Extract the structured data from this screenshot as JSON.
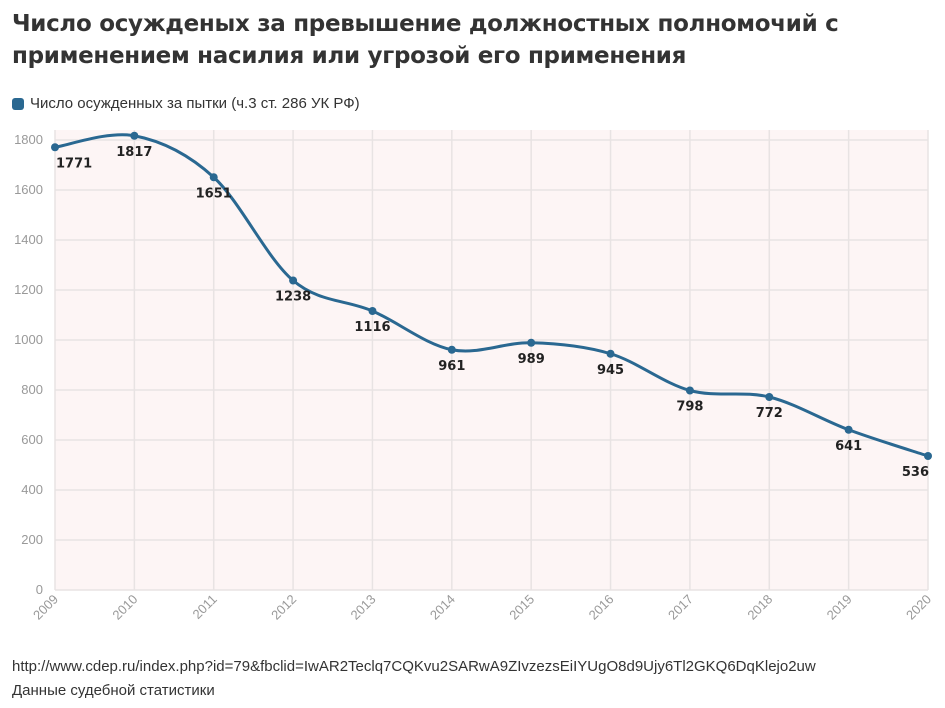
{
  "title": "Число осужденых за превышение должностных полномочий с применением насилия или угрозой его применения",
  "legend": {
    "label": "Число осужденных за пытки (ч.3 ст. 286 УК РФ)"
  },
  "colors": {
    "line": "#2a6891",
    "plot_bg": "#fdf5f5",
    "grid": "#e8e3e3"
  },
  "footer": {
    "source_url": "http://www.cdep.ru/index.php?id=79&fbclid=IwAR2Teclq7CQKvu2SARwA9ZIvzezsEiIYUgO8d9Ujy6Tl2GKQ6DqKlejo2uw",
    "source_note": "Данные судебной статистики"
  },
  "chart_data": {
    "type": "line",
    "x": [
      "2009",
      "2010",
      "2011",
      "2012",
      "2013",
      "2014",
      "2015",
      "2016",
      "2017",
      "2018",
      "2019",
      "2020"
    ],
    "series": [
      {
        "name": "Число осужденных за пытки (ч.3 ст. 286 УК РФ)",
        "values": [
          1771,
          1817,
          1651,
          1238,
          1116,
          961,
          989,
          945,
          798,
          772,
          641,
          536
        ]
      }
    ],
    "ylim": [
      0,
      1800
    ],
    "yticks": [
      0,
      200,
      400,
      600,
      800,
      1000,
      1200,
      1400,
      1600,
      1800
    ],
    "grid": true,
    "legend_position": "top-left",
    "data_labels": true
  }
}
